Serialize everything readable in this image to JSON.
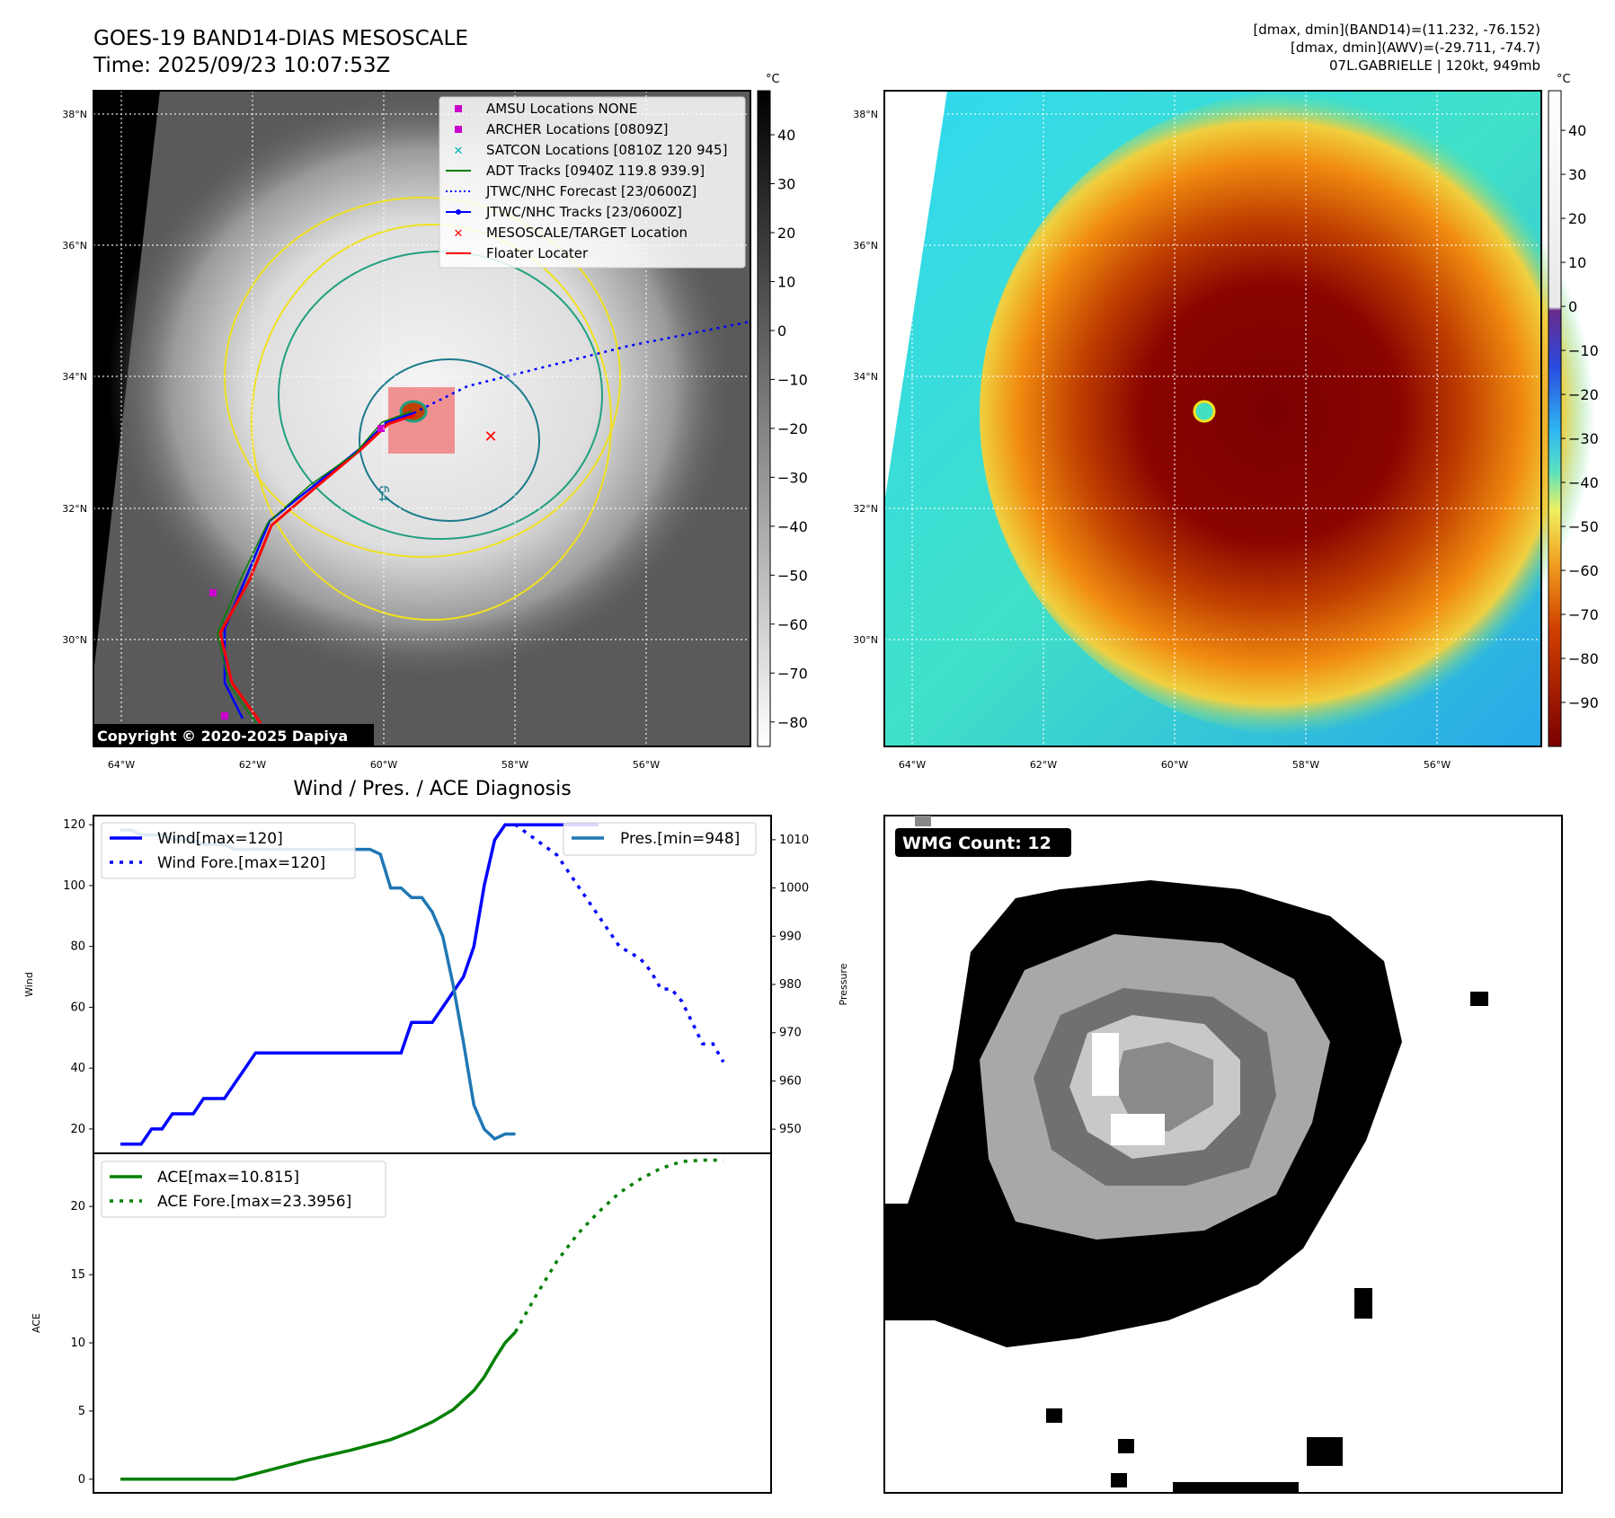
{
  "header": {
    "title_line1": "GOES-19 BAND14-DIAS MESOSCALE",
    "title_line2": "Time: 2025/09/23 10:07:53Z",
    "info_line1": "[dmax, dmin](BAND14)=(11.232, -76.152)",
    "info_line2": "[dmax, dmin](AWV)=(-29.711, -74.7)",
    "info_line3": "07L.GABRIELLE | 120kt, 949mb",
    "unit_left": "°C",
    "unit_right": "°C"
  },
  "map": {
    "lat_labels": [
      "38°N",
      "36°N",
      "34°N",
      "32°N",
      "30°N"
    ],
    "lon_labels": [
      "64°W",
      "62°W",
      "60°W",
      "58°W",
      "56°W"
    ],
    "contour_label": "64",
    "copyright": "Copyright © 2020-2025 Dapiya"
  },
  "legend_map": {
    "items": [
      {
        "label": "AMSU Locations NONE",
        "symbol": "square",
        "color": "#cc00cc"
      },
      {
        "label": "ARCHER Locations [0809Z]",
        "symbol": "square",
        "color": "#cc00cc"
      },
      {
        "label": "SATCON Locations [0810Z 120 945]",
        "symbol": "x",
        "color": "#00b0b0"
      },
      {
        "label": "ADT Tracks [0940Z 119.8 939.9]",
        "symbol": "line",
        "color": "#008000"
      },
      {
        "label": "JTWC/NHC Forecast [23/0600Z]",
        "symbol": "dotted",
        "color": "#0000ff"
      },
      {
        "label": "JTWC/NHC Tracks [23/0600Z]",
        "symbol": "line-dot",
        "color": "#0000ff"
      },
      {
        "label": "MESOSCALE/TARGET Location",
        "symbol": "x",
        "color": "#ff0000"
      },
      {
        "label": "Floater Locater",
        "symbol": "line",
        "color": "#ff0000"
      }
    ]
  },
  "colorbar_left": {
    "ticks": [
      "40",
      "30",
      "20",
      "10",
      "0",
      "−10",
      "−20",
      "−30",
      "−40",
      "−50",
      "−60",
      "−70",
      "−80"
    ]
  },
  "colorbar_right": {
    "ticks": [
      "40",
      "30",
      "20",
      "10",
      "0",
      "−10",
      "−20",
      "−30",
      "−40",
      "−50",
      "−60",
      "−70",
      "−80",
      "−90"
    ]
  },
  "chart_data": [
    {
      "type": "line",
      "title": "Wind / Pres. / ACE Diagnosis",
      "ylabel": "Wind",
      "ylabel_right": "Pressure",
      "ylim": [
        12,
        123
      ],
      "ylim_right": [
        945,
        1015
      ],
      "yticks": [
        20,
        40,
        60,
        80,
        100,
        120
      ],
      "yticks_right": [
        950,
        960,
        970,
        980,
        990,
        1000,
        1010
      ],
      "legend_left": [
        "Wind[max=120]",
        "Wind Fore.[max=120]"
      ],
      "legend_right": [
        "Pres.[min=948]"
      ],
      "series": [
        {
          "name": "Wind[max=120]",
          "color": "#0000ff",
          "style": "solid",
          "x": [
            0,
            1,
            2,
            3,
            4,
            5,
            6,
            7,
            8,
            9,
            10,
            11,
            12,
            13,
            14,
            15,
            16,
            17,
            18,
            19,
            20,
            21,
            22,
            23,
            24,
            25,
            26,
            27,
            28,
            29,
            30,
            31,
            32,
            33,
            34,
            35,
            36,
            37,
            38,
            39,
            40,
            41,
            42,
            43,
            44,
            45,
            46
          ],
          "values": [
            15,
            15,
            15,
            20,
            20,
            25,
            25,
            25,
            30,
            30,
            30,
            35,
            40,
            45,
            45,
            45,
            45,
            45,
            45,
            45,
            45,
            45,
            45,
            45,
            45,
            45,
            45,
            45,
            55,
            55,
            55,
            60,
            65,
            70,
            80,
            100,
            115,
            120,
            120,
            120,
            120,
            120,
            120,
            120,
            120,
            120,
            120
          ]
        },
        {
          "name": "Wind Fore.[max=120]",
          "color": "#0000ff",
          "style": "dotted",
          "x": [
            37,
            38,
            40,
            42,
            44,
            46,
            48,
            50,
            51,
            52,
            53,
            54,
            55,
            56,
            57,
            58
          ],
          "values": [
            120,
            120,
            115,
            110,
            100,
            90,
            80,
            76,
            72,
            66,
            66,
            62,
            55,
            48,
            48,
            42
          ]
        },
        {
          "name": "Pres.[min=948]",
          "color": "#1f77b4",
          "style": "solid",
          "axis": "right",
          "x": [
            0,
            1,
            2,
            3,
            4,
            5,
            6,
            7,
            8,
            9,
            10,
            11,
            12,
            13,
            14,
            15,
            16,
            17,
            18,
            19,
            20,
            21,
            22,
            23,
            24,
            25,
            26,
            27,
            28,
            29,
            30,
            31,
            32,
            33,
            34,
            35,
            36,
            37,
            38
          ],
          "values": [
            1012,
            1012,
            1011,
            1011,
            1011,
            1010,
            1010,
            1010,
            1009,
            1009,
            1009,
            1008,
            1008,
            1008,
            1008,
            1008,
            1008,
            1008,
            1008,
            1008,
            1008,
            1008,
            1008,
            1008,
            1008,
            1007,
            1000,
            1000,
            998,
            998,
            995,
            990,
            980,
            968,
            955,
            950,
            948,
            949,
            949
          ]
        }
      ]
    },
    {
      "type": "line",
      "ylabel": "ACE",
      "ylim": [
        -1,
        23.9
      ],
      "yticks": [
        0,
        5,
        10,
        15,
        20
      ],
      "legend": [
        "ACE[max=10.815]",
        "ACE Fore.[max=23.3956]"
      ],
      "series": [
        {
          "name": "ACE[max=10.815]",
          "color": "#008000",
          "style": "solid",
          "x": [
            0,
            2,
            4,
            6,
            8,
            10,
            11,
            14,
            18,
            22,
            26,
            28,
            30,
            32,
            34,
            35,
            36,
            37,
            38
          ],
          "values": [
            0,
            0,
            0,
            0,
            0,
            0,
            0,
            0.6,
            1.4,
            2.1,
            2.9,
            3.5,
            4.2,
            5.1,
            6.5,
            7.5,
            8.8,
            10,
            10.8
          ]
        },
        {
          "name": "ACE Fore.[max=23.3956]",
          "color": "#008000",
          "style": "dotted",
          "x": [
            38,
            40,
            42,
            44,
            46,
            48,
            50,
            52,
            54,
            56,
            58
          ],
          "values": [
            10.8,
            13.5,
            16,
            18,
            19.6,
            21,
            22,
            22.8,
            23.3,
            23.4,
            23.4
          ]
        }
      ]
    }
  ],
  "wmg": {
    "label": "WMG Count: 12"
  }
}
